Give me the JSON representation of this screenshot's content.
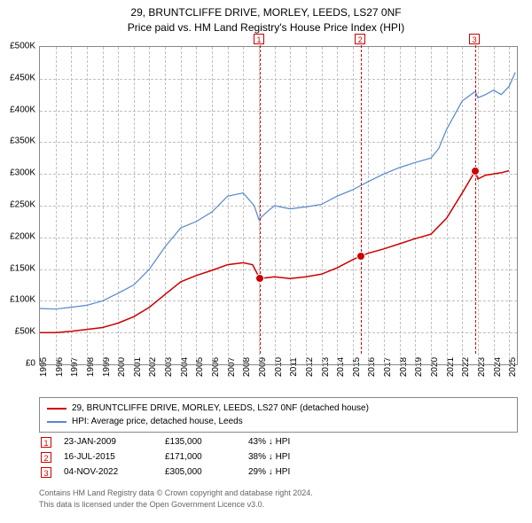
{
  "title": {
    "line1": "29, BRUNTCLIFFE DRIVE, MORLEY, LEEDS, LS27 0NF",
    "line2": "Price paid vs. HM Land Registry's House Price Index (HPI)"
  },
  "chart": {
    "type": "line",
    "background_color": "#ffffff",
    "grid_color": "#c0c0c0",
    "border_color": "#888888",
    "title_fontsize": 12,
    "tick_fontsize": 10,
    "x": {
      "min": 1995,
      "max": 2025.5,
      "ticks": [
        1995,
        1996,
        1997,
        1998,
        1999,
        2000,
        2001,
        2002,
        2003,
        2004,
        2005,
        2006,
        2007,
        2008,
        2009,
        2010,
        2011,
        2012,
        2013,
        2014,
        2015,
        2016,
        2017,
        2018,
        2019,
        2020,
        2021,
        2022,
        2023,
        2024,
        2025
      ]
    },
    "y": {
      "min": 0,
      "max": 500000,
      "ticks": [
        0,
        50000,
        100000,
        150000,
        200000,
        250000,
        300000,
        350000,
        400000,
        450000,
        500000
      ],
      "tick_labels": [
        "£0",
        "£50K",
        "£100K",
        "£150K",
        "£200K",
        "£250K",
        "£300K",
        "£350K",
        "£400K",
        "£450K",
        "£500K"
      ]
    },
    "series": [
      {
        "id": "property",
        "label": "29, BRUNTCLIFFE DRIVE, MORLEY, LEEDS, LS27 0NF (detached house)",
        "color": "#cc0000",
        "line_width": 1.5,
        "data": [
          [
            1995,
            50000
          ],
          [
            1996,
            50000
          ],
          [
            1997,
            52000
          ],
          [
            1998,
            55000
          ],
          [
            1999,
            58000
          ],
          [
            2000,
            65000
          ],
          [
            2001,
            75000
          ],
          [
            2002,
            90000
          ],
          [
            2003,
            110000
          ],
          [
            2004,
            130000
          ],
          [
            2005,
            140000
          ],
          [
            2006,
            148000
          ],
          [
            2007,
            157000
          ],
          [
            2008,
            160000
          ],
          [
            2008.6,
            157000
          ],
          [
            2009.06,
            135000
          ],
          [
            2010,
            138000
          ],
          [
            2011,
            135000
          ],
          [
            2012,
            138000
          ],
          [
            2013,
            142000
          ],
          [
            2014,
            152000
          ],
          [
            2015,
            165000
          ],
          [
            2015.54,
            171000
          ],
          [
            2016,
            175000
          ],
          [
            2017,
            182000
          ],
          [
            2018,
            190000
          ],
          [
            2019,
            198000
          ],
          [
            2020,
            205000
          ],
          [
            2021,
            230000
          ],
          [
            2022,
            270000
          ],
          [
            2022.84,
            305000
          ],
          [
            2023,
            292000
          ],
          [
            2023.5,
            298000
          ],
          [
            2024,
            300000
          ],
          [
            2024.5,
            302000
          ],
          [
            2025,
            305000
          ]
        ]
      },
      {
        "id": "hpi",
        "label": "HPI: Average price, detached house, Leeds",
        "color": "#5588cc",
        "line_width": 1.2,
        "data": [
          [
            1995,
            88000
          ],
          [
            1996,
            87000
          ],
          [
            1997,
            90000
          ],
          [
            1998,
            93000
          ],
          [
            1999,
            100000
          ],
          [
            2000,
            112000
          ],
          [
            2001,
            125000
          ],
          [
            2002,
            150000
          ],
          [
            2003,
            185000
          ],
          [
            2004,
            215000
          ],
          [
            2005,
            225000
          ],
          [
            2006,
            240000
          ],
          [
            2007,
            265000
          ],
          [
            2008,
            270000
          ],
          [
            2008.7,
            250000
          ],
          [
            2009,
            228000
          ],
          [
            2009.5,
            240000
          ],
          [
            2010,
            250000
          ],
          [
            2011,
            245000
          ],
          [
            2012,
            248000
          ],
          [
            2013,
            252000
          ],
          [
            2014,
            265000
          ],
          [
            2015,
            275000
          ],
          [
            2016,
            288000
          ],
          [
            2017,
            300000
          ],
          [
            2018,
            310000
          ],
          [
            2019,
            318000
          ],
          [
            2020,
            325000
          ],
          [
            2020.5,
            340000
          ],
          [
            2021,
            370000
          ],
          [
            2022,
            415000
          ],
          [
            2022.84,
            430000
          ],
          [
            2023,
            420000
          ],
          [
            2023.5,
            425000
          ],
          [
            2024,
            432000
          ],
          [
            2024.5,
            425000
          ],
          [
            2025,
            438000
          ],
          [
            2025.4,
            460000
          ]
        ]
      }
    ],
    "events": [
      {
        "n": "1",
        "year": 2009.06,
        "date": "23-JAN-2009",
        "price": "£135,000",
        "price_val": 135000,
        "diff": "43% ↓ HPI"
      },
      {
        "n": "2",
        "year": 2015.54,
        "date": "16-JUL-2015",
        "price": "£171,000",
        "price_val": 171000,
        "diff": "38% ↓ HPI"
      },
      {
        "n": "3",
        "year": 2022.84,
        "date": "04-NOV-2022",
        "price": "£305,000",
        "price_val": 305000,
        "diff": "29% ↓ HPI"
      }
    ],
    "event_marker": {
      "border_color": "#cc0000",
      "text_color": "#cc0000",
      "line_color": "#cc0000",
      "line_dash": "2,2"
    },
    "point_marker": {
      "fill": "#cc0000",
      "stroke": "#ffffff",
      "radius": 4
    }
  },
  "legend": {
    "border_color": "#888888",
    "fontsize": 10
  },
  "footer": {
    "line1": "Contains HM Land Registry data © Crown copyright and database right 2024.",
    "line2": "This data is licensed under the Open Government Licence v3.0.",
    "color": "#666666",
    "fontsize": 9
  }
}
